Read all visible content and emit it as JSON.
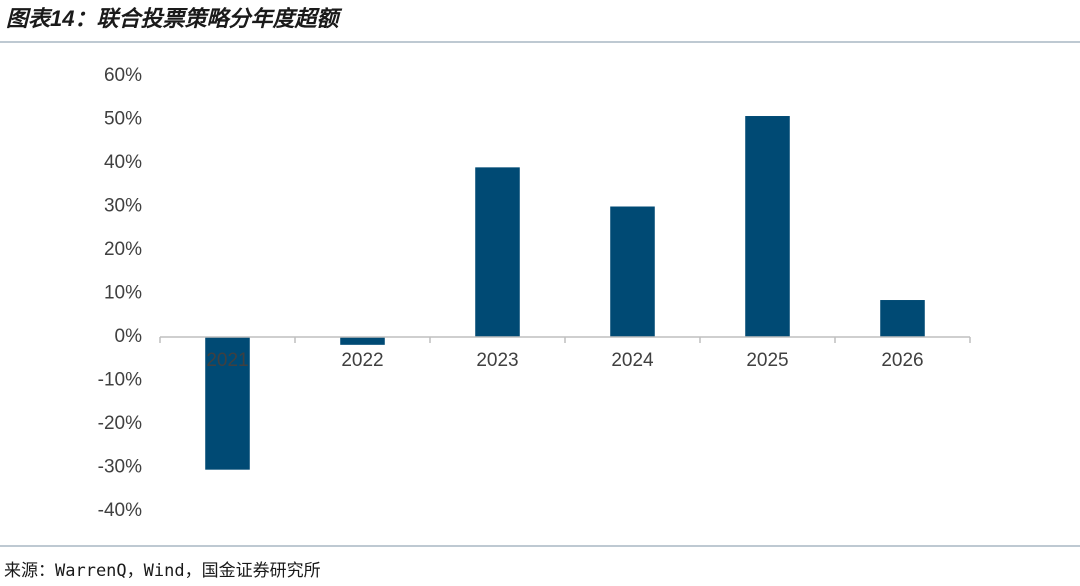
{
  "chart_data": {
    "type": "bar",
    "title": "图表14：联合投票策略分年度超额",
    "source": "来源：WarrenQ，Wind，国金证券研究所",
    "categories": [
      "2021",
      "2022",
      "2023",
      "2024",
      "2025",
      "2026"
    ],
    "values": [
      -30.5,
      -1.8,
      39,
      30,
      50.8,
      8.5
    ],
    "color": "#004a74",
    "ylim": [
      -40,
      60
    ],
    "yticks": [
      {
        "value": -40,
        "label": "-40%"
      },
      {
        "value": -30,
        "label": "-30%"
      },
      {
        "value": -20,
        "label": "-20%"
      },
      {
        "value": -10,
        "label": "-10%"
      },
      {
        "value": 0,
        "label": "0%"
      },
      {
        "value": 10,
        "label": "10%"
      },
      {
        "value": 20,
        "label": "20%"
      },
      {
        "value": 30,
        "label": "30%"
      },
      {
        "value": 40,
        "label": "40%"
      },
      {
        "value": 50,
        "label": "50%"
      },
      {
        "value": 60,
        "label": "60%"
      }
    ],
    "grid": false
  }
}
